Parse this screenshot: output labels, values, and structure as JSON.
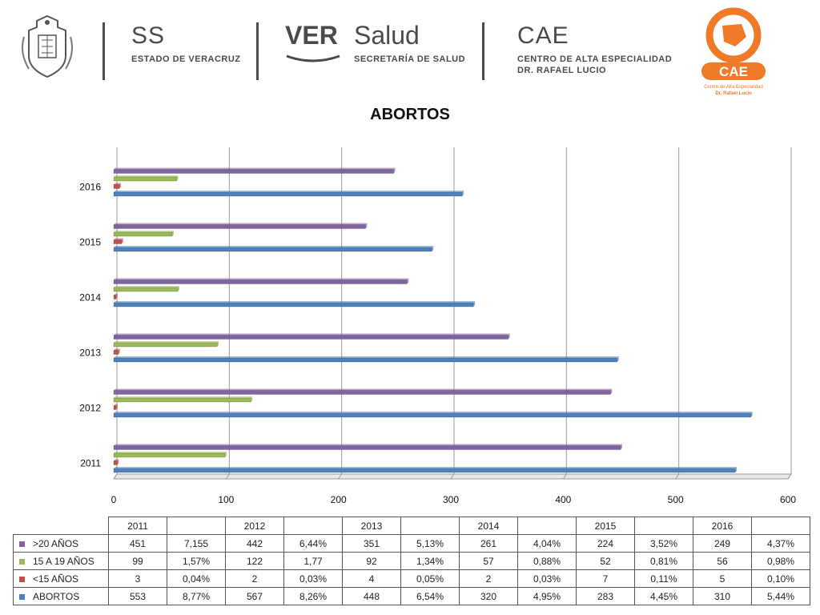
{
  "header": {
    "ss_logo": "SS",
    "ss_sub": "ESTADO DE VERACRUZ",
    "ver_logo": "VER",
    "salud_logo": "Salud",
    "salud_sub": "SECRETARÍA DE SALUD",
    "cae_logo": "CAE",
    "cae_sub1": "CENTRO DE ALTA ESPECIALIDAD",
    "cae_sub2": "DR. RAFAEL LUCIO",
    "badge_text": "CAE",
    "badge_sub1": "Centro de Alta Especialidad",
    "badge_sub2": "Dr. Rafael Lucio"
  },
  "colors": {
    "purple": "#8064a2",
    "green": "#9bbb59",
    "red": "#c0504d",
    "blue": "#4f81bd",
    "orange": "#f07a28"
  },
  "chart_data": {
    "type": "bar",
    "orientation": "horizontal",
    "title": "ABORTOS",
    "categories": [
      "2011",
      "2012",
      "2013",
      "2014",
      "2015",
      "2016"
    ],
    "xlim": [
      0,
      600
    ],
    "xticks": [
      "0",
      "100",
      "200",
      "300",
      "400",
      "500",
      "600"
    ],
    "series": [
      {
        "name": "ABORTOS",
        "color": "#4f81bd",
        "values": [
          553,
          567,
          448,
          320,
          283,
          310
        ]
      },
      {
        "name": "<15 AÑOS",
        "color": "#c0504d",
        "values": [
          3,
          2,
          4,
          2,
          7,
          5
        ]
      },
      {
        "name": "15 A 19 AÑOS",
        "color": "#9bbb59",
        "values": [
          99,
          122,
          92,
          57,
          52,
          56
        ]
      },
      {
        "name": ">20 AÑOS",
        "color": "#8064a2",
        "values": [
          451,
          442,
          351,
          261,
          224,
          249
        ]
      }
    ],
    "percent_series": [
      {
        "name": "ABORTOS",
        "values": [
          8.77,
          8.26,
          6.54,
          4.95,
          4.45,
          5.44
        ]
      },
      {
        "name": "<15 AÑOS",
        "values": [
          0.04,
          0.03,
          0.05,
          0.03,
          0.11,
          0.1
        ]
      },
      {
        "name": "15 A 19 AÑOS",
        "values": [
          1.57,
          1.77,
          1.34,
          0.88,
          0.81,
          0.98
        ]
      },
      {
        "name": ">20 AÑOS",
        "values": [
          7.155,
          6.44,
          5.13,
          4.04,
          3.52,
          4.37
        ]
      }
    ],
    "grid": true,
    "legend": "table-below"
  },
  "table": {
    "header": [
      "2011",
      "",
      "2012",
      "",
      "2013",
      "",
      "2014",
      "",
      "2015",
      "",
      "2016",
      ""
    ],
    "rows": [
      {
        "label": ">20 AÑOS",
        "color": "#8064a2",
        "cells": [
          "451",
          "7,155",
          "442",
          "6,44%",
          "351",
          "5,13%",
          "261",
          "4,04%",
          "224",
          "3,52%",
          "249",
          "4,37%"
        ]
      },
      {
        "label": "15 A 19 AÑOS",
        "color": "#9bbb59",
        "cells": [
          "99",
          "1,57%",
          "122",
          "1,77",
          "92",
          "1,34%",
          "57",
          "0,88%",
          "52",
          "0,81%",
          "56",
          "0,98%"
        ]
      },
      {
        "label": "<15 AÑOS",
        "color": "#c0504d",
        "cells": [
          "3",
          "0,04%",
          "2",
          "0,03%",
          "4",
          "0,05%",
          "2",
          "0,03%",
          "7",
          "0,11%",
          "5",
          "0,10%"
        ]
      },
      {
        "label": "ABORTOS",
        "color": "#4f81bd",
        "cells": [
          "553",
          "8,77%",
          "567",
          "8,26%",
          "448",
          "6,54%",
          "320",
          "4,95%",
          "283",
          "4,45%",
          "310",
          "5,44%"
        ]
      }
    ]
  }
}
